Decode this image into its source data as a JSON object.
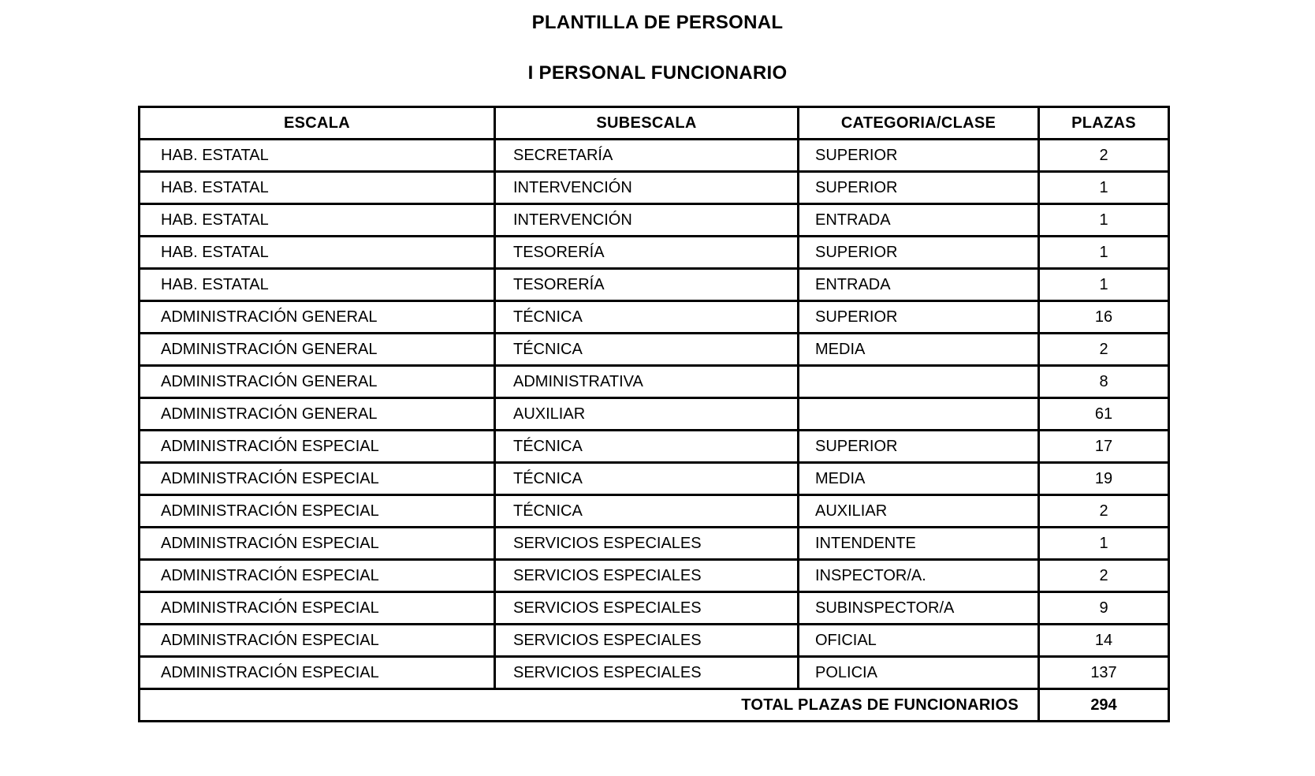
{
  "page": {
    "title": "PLANTILLA DE PERSONAL",
    "subtitle": "I PERSONAL FUNCIONARIO"
  },
  "table": {
    "headers": [
      "ESCALA",
      "SUBESCALA",
      "CATEGORIA/CLASE",
      "PLAZAS"
    ],
    "rows": [
      {
        "escala": "HAB. ESTATAL",
        "subescala": "SECRETARÍA",
        "categoria": "SUPERIOR",
        "plazas": "2"
      },
      {
        "escala": "HAB. ESTATAL",
        "subescala": "INTERVENCIÓN",
        "categoria": "SUPERIOR",
        "plazas": "1"
      },
      {
        "escala": "HAB. ESTATAL",
        "subescala": "INTERVENCIÓN",
        "categoria": "ENTRADA",
        "plazas": "1"
      },
      {
        "escala": "HAB. ESTATAL",
        "subescala": "TESORERÍA",
        "categoria": "SUPERIOR",
        "plazas": "1"
      },
      {
        "escala": "HAB. ESTATAL",
        "subescala": "TESORERÍA",
        "categoria": "ENTRADA",
        "plazas": "1"
      },
      {
        "escala": "ADMINISTRACIÓN GENERAL",
        "subescala": "TÉCNICA",
        "categoria": "SUPERIOR",
        "plazas": "16"
      },
      {
        "escala": "ADMINISTRACIÓN GENERAL",
        "subescala": "TÉCNICA",
        "categoria": "MEDIA",
        "plazas": "2"
      },
      {
        "escala": "ADMINISTRACIÓN GENERAL",
        "subescala": "ADMINISTRATIVA",
        "categoria": "",
        "plazas": "8"
      },
      {
        "escala": "ADMINISTRACIÓN GENERAL",
        "subescala": "AUXILIAR",
        "categoria": "",
        "plazas": "61"
      },
      {
        "escala": "ADMINISTRACIÓN ESPECIAL",
        "subescala": "TÉCNICA",
        "categoria": "SUPERIOR",
        "plazas": "17"
      },
      {
        "escala": "ADMINISTRACIÓN ESPECIAL",
        "subescala": "TÉCNICA",
        "categoria": "MEDIA",
        "plazas": "19"
      },
      {
        "escala": "ADMINISTRACIÓN ESPECIAL",
        "subescala": "TÉCNICA",
        "categoria": "AUXILIAR",
        "plazas": "2"
      },
      {
        "escala": "ADMINISTRACIÓN ESPECIAL",
        "subescala": "SERVICIOS ESPECIALES",
        "categoria": "INTENDENTE",
        "plazas": "1"
      },
      {
        "escala": "ADMINISTRACIÓN ESPECIAL",
        "subescala": "SERVICIOS ESPECIALES",
        "categoria": "INSPECTOR/A.",
        "plazas": "2"
      },
      {
        "escala": "ADMINISTRACIÓN ESPECIAL",
        "subescala": "SERVICIOS ESPECIALES",
        "categoria": "SUBINSPECTOR/A",
        "plazas": "9"
      },
      {
        "escala": "ADMINISTRACIÓN ESPECIAL",
        "subescala": "SERVICIOS ESPECIALES",
        "categoria": "OFICIAL",
        "plazas": "14"
      },
      {
        "escala": "ADMINISTRACIÓN ESPECIAL",
        "subescala": "SERVICIOS ESPECIALES",
        "categoria": "POLICIA",
        "plazas": "137"
      }
    ],
    "total": {
      "label": "TOTAL PLAZAS DE FUNCIONARIOS",
      "plazas": "294"
    }
  }
}
